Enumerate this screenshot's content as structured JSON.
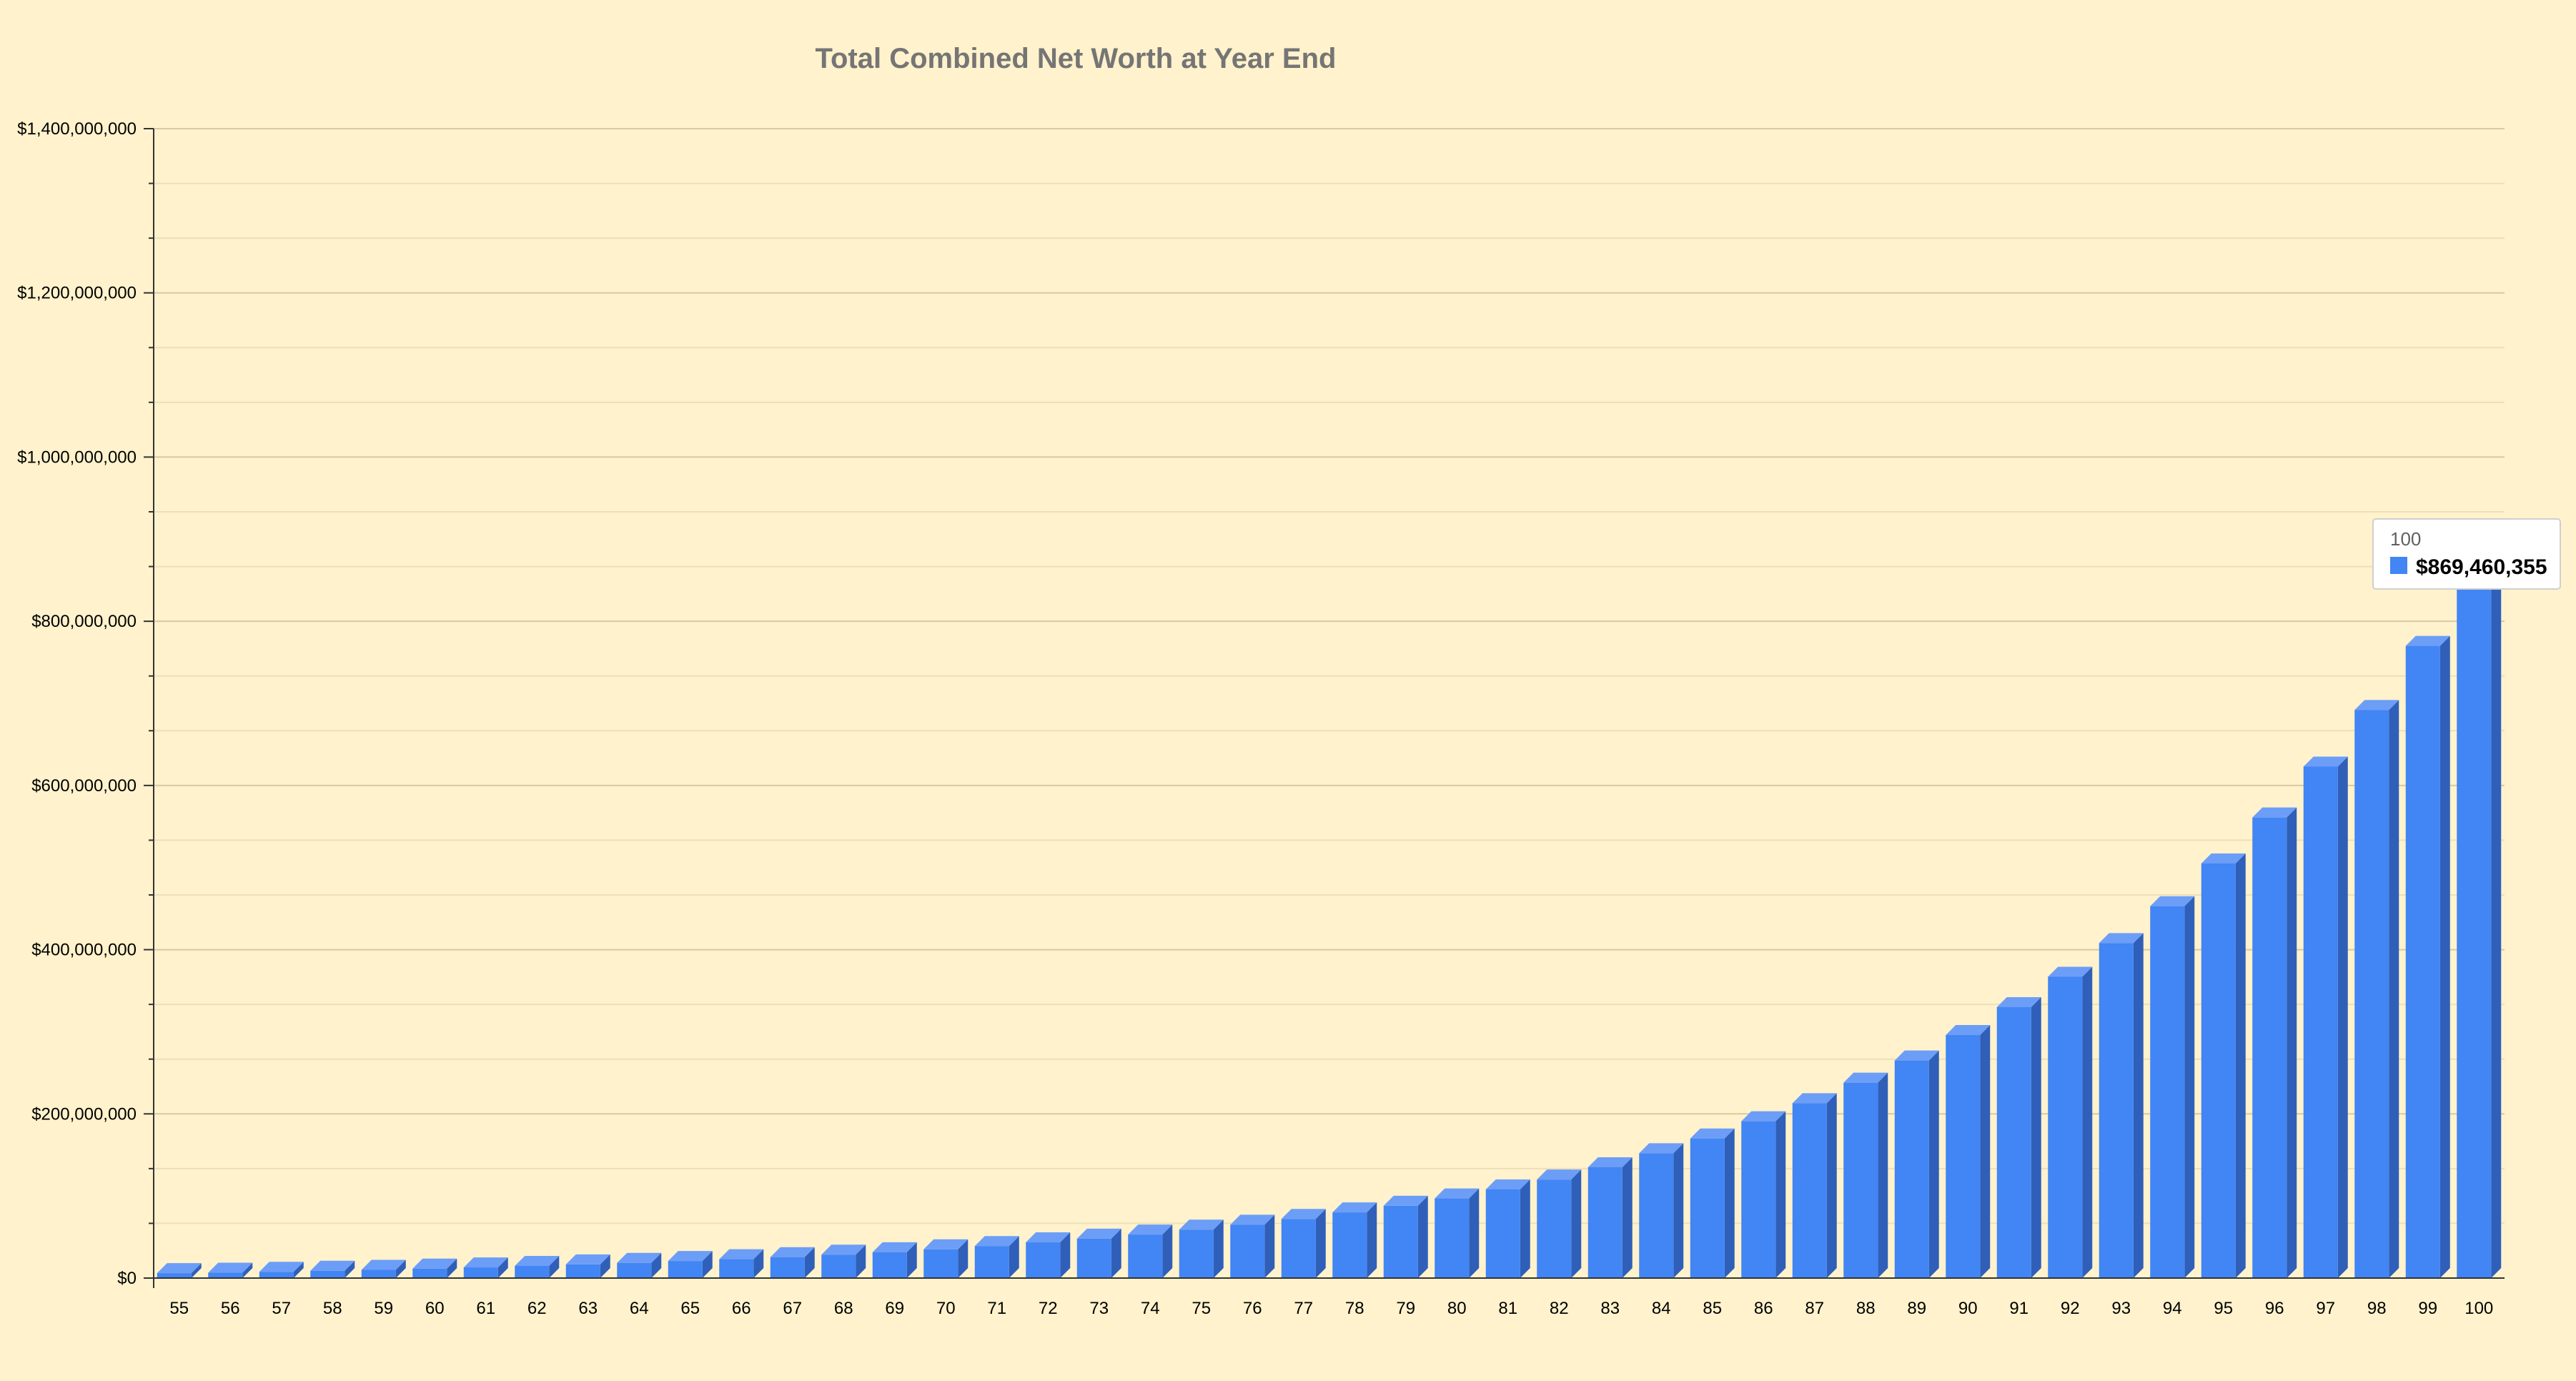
{
  "chart_data": {
    "type": "bar",
    "title": "Total Combined Net Worth at Year End",
    "xlabel": "",
    "ylabel": "",
    "ylim": [
      0,
      1400000000
    ],
    "y_tick_values": [
      0,
      200000000,
      400000000,
      600000000,
      800000000,
      1000000000,
      1200000000,
      1400000000
    ],
    "y_tick_labels": [
      "$0",
      "$200,000,000",
      "$400,000,000",
      "$600,000,000",
      "$800,000,000",
      "$1,000,000,000",
      "$1,200,000,000",
      "$1,400,000,000"
    ],
    "categories": [
      "55",
      "56",
      "57",
      "58",
      "59",
      "60",
      "61",
      "62",
      "63",
      "64",
      "65",
      "66",
      "67",
      "68",
      "69",
      "70",
      "71",
      "72",
      "73",
      "74",
      "75",
      "76",
      "77",
      "78",
      "79",
      "80",
      "81",
      "82",
      "83",
      "84",
      "85",
      "86",
      "87",
      "88",
      "89",
      "90",
      "91",
      "92",
      "93",
      "94",
      "95",
      "96",
      "97",
      "98",
      "99",
      "100"
    ],
    "values": [
      6000000,
      6500000,
      7600000,
      8900000,
      10000000,
      11500000,
      13000000,
      14800000,
      16600000,
      18500000,
      20800000,
      23000000,
      25500000,
      28500000,
      31500000,
      35000000,
      39000000,
      43500000,
      48000000,
      53000000,
      59000000,
      65000000,
      72000000,
      80000000,
      88000000,
      97000000,
      108000000,
      120000000,
      135000000,
      152000000,
      170000000,
      191000000,
      213000000,
      238000000,
      265000000,
      296000000,
      330000000,
      367000000,
      408000000,
      453000000,
      505000000,
      561000000,
      623000000,
      692000000,
      770000000,
      869460355
    ],
    "grid": true,
    "legend": "none",
    "colors": {
      "bar_front": "#4285f4",
      "bar_top": "#6c9ef8",
      "bar_side": "#2f5fb8",
      "gridline_major": "#d8caa0",
      "gridline_minor": "#ece0ba",
      "axis": "#333333"
    }
  },
  "tooltip": {
    "category": "100",
    "value": "$869,460,355"
  }
}
